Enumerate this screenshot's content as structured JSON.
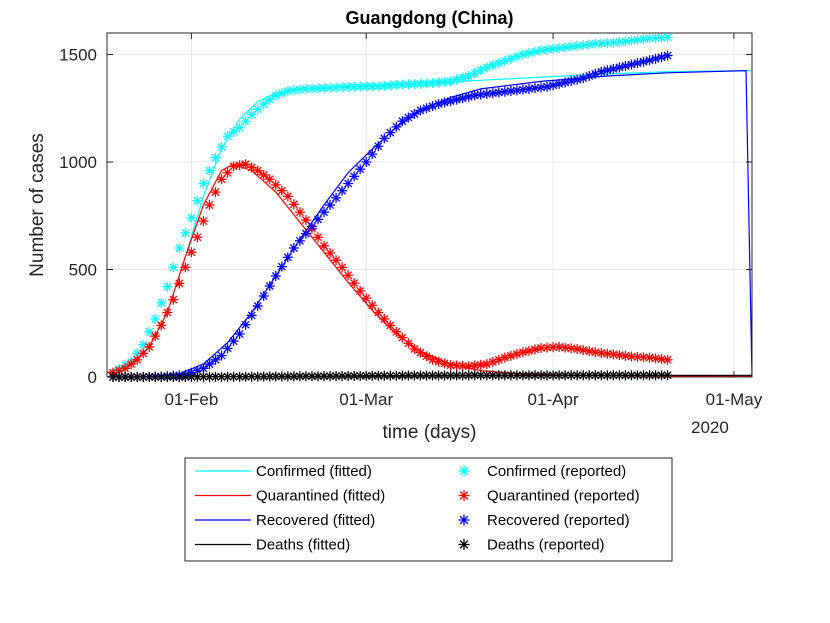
{
  "chart_data": {
    "type": "line",
    "title": "Guangdong (China)",
    "xlabel": "time (days)",
    "ylabel": "Number of cases",
    "x_axis": {
      "type": "date",
      "range": [
        "2020-01-18",
        "2020-05-04"
      ],
      "ticks": [
        {
          "date": "2020-02-01",
          "label": "01-Feb"
        },
        {
          "date": "2020-03-01",
          "label": "01-Mar"
        },
        {
          "date": "2020-04-01",
          "label": "01-Apr"
        },
        {
          "date": "2020-05-01",
          "label": "01-May"
        }
      ],
      "year_label": "2020"
    },
    "y_axis": {
      "range": [
        0,
        1600
      ],
      "ticks": [
        0,
        500,
        1000,
        1500
      ]
    },
    "grid": true,
    "legend": {
      "placement": "below",
      "columns": 2
    },
    "series": [
      {
        "name": "Confirmed (fitted)",
        "kind": "fitted",
        "color": "#00ffff",
        "x": [
          "2020-01-18",
          "2020-01-22",
          "2020-01-25",
          "2020-01-28",
          "2020-01-31",
          "2020-02-03",
          "2020-02-06",
          "2020-02-09",
          "2020-02-12",
          "2020-02-15",
          "2020-02-18",
          "2020-02-22",
          "2020-02-26",
          "2020-03-02",
          "2020-03-10",
          "2020-03-20",
          "2020-03-30",
          "2020-04-10",
          "2020-04-20",
          "2020-05-04"
        ],
        "y": [
          20,
          60,
          140,
          300,
          560,
          840,
          1060,
          1200,
          1280,
          1320,
          1335,
          1345,
          1350,
          1355,
          1365,
          1380,
          1395,
          1410,
          1420,
          1425
        ]
      },
      {
        "name": "Quarantined (fitted)",
        "kind": "fitted",
        "color": "#ff0000",
        "x": [
          "2020-01-18",
          "2020-01-22",
          "2020-01-25",
          "2020-01-28",
          "2020-01-31",
          "2020-02-03",
          "2020-02-06",
          "2020-02-08",
          "2020-02-11",
          "2020-02-15",
          "2020-02-19",
          "2020-02-23",
          "2020-02-27",
          "2020-03-02",
          "2020-03-06",
          "2020-03-10",
          "2020-03-15",
          "2020-03-20",
          "2020-03-27",
          "2020-04-05",
          "2020-04-20",
          "2020-05-04"
        ],
        "y": [
          20,
          60,
          140,
          300,
          560,
          800,
          960,
          990,
          960,
          860,
          720,
          580,
          440,
          310,
          200,
          120,
          60,
          30,
          15,
          8,
          5,
          3
        ]
      },
      {
        "name": "Recovered (fitted)",
        "kind": "fitted",
        "color": "#0000ff",
        "x": [
          "2020-01-18",
          "2020-01-25",
          "2020-01-30",
          "2020-02-03",
          "2020-02-07",
          "2020-02-11",
          "2020-02-15",
          "2020-02-19",
          "2020-02-23",
          "2020-02-27",
          "2020-03-02",
          "2020-03-06",
          "2020-03-10",
          "2020-03-15",
          "2020-03-20",
          "2020-03-30",
          "2020-04-10",
          "2020-04-20",
          "2020-05-03",
          "2020-05-04"
        ],
        "y": [
          0,
          2,
          15,
          60,
          160,
          300,
          470,
          640,
          800,
          950,
          1060,
          1160,
          1240,
          1300,
          1340,
          1375,
          1400,
          1415,
          1425,
          0
        ]
      },
      {
        "name": "Deaths (fitted)",
        "kind": "fitted",
        "color": "#000000",
        "x": [
          "2020-01-18",
          "2020-02-15",
          "2020-03-10",
          "2020-04-10",
          "2020-05-04"
        ],
        "y": [
          0,
          2,
          6,
          8,
          8
        ]
      },
      {
        "name": "Confirmed (reported)",
        "kind": "reported",
        "color": "#00ffff",
        "x": [
          "2020-01-19",
          "2020-01-22",
          "2020-01-24",
          "2020-01-26",
          "2020-01-28",
          "2020-01-30",
          "2020-02-01",
          "2020-02-03",
          "2020-02-05",
          "2020-02-07",
          "2020-02-09",
          "2020-02-11",
          "2020-02-13",
          "2020-02-15",
          "2020-02-17",
          "2020-02-20",
          "2020-02-24",
          "2020-02-28",
          "2020-03-03",
          "2020-03-07",
          "2020-03-11",
          "2020-03-15",
          "2020-03-18",
          "2020-03-21",
          "2020-03-24",
          "2020-03-27",
          "2020-03-30",
          "2020-04-02",
          "2020-04-05",
          "2020-04-08",
          "2020-04-11",
          "2020-04-14",
          "2020-04-17",
          "2020-04-20"
        ],
        "y": [
          20,
          70,
          150,
          270,
          420,
          600,
          740,
          900,
          1020,
          1120,
          1160,
          1220,
          1270,
          1310,
          1330,
          1340,
          1345,
          1350,
          1352,
          1360,
          1365,
          1375,
          1400,
          1440,
          1470,
          1500,
          1520,
          1530,
          1540,
          1550,
          1555,
          1565,
          1575,
          1580
        ]
      },
      {
        "name": "Quarantined (reported)",
        "kind": "reported",
        "color": "#ff0000",
        "x": [
          "2020-01-19",
          "2020-01-21",
          "2020-01-23",
          "2020-01-25",
          "2020-01-27",
          "2020-01-29",
          "2020-01-31",
          "2020-02-02",
          "2020-02-04",
          "2020-02-06",
          "2020-02-08",
          "2020-02-10",
          "2020-02-12",
          "2020-02-14",
          "2020-02-17",
          "2020-02-20",
          "2020-02-23",
          "2020-02-26",
          "2020-02-29",
          "2020-03-03",
          "2020-03-06",
          "2020-03-09",
          "2020-03-12",
          "2020-03-15",
          "2020-03-18",
          "2020-03-21",
          "2020-03-24",
          "2020-03-27",
          "2020-03-30",
          "2020-04-02",
          "2020-04-05",
          "2020-04-08",
          "2020-04-11",
          "2020-04-14",
          "2020-04-17",
          "2020-04-20"
        ],
        "y": [
          20,
          40,
          80,
          140,
          240,
          360,
          510,
          650,
          800,
          920,
          980,
          990,
          960,
          920,
          840,
          730,
          610,
          510,
          400,
          300,
          210,
          130,
          80,
          55,
          50,
          60,
          90,
          115,
          135,
          140,
          130,
          115,
          105,
          95,
          90,
          80
        ]
      },
      {
        "name": "Recovered (reported)",
        "kind": "reported",
        "color": "#0000ff",
        "x": [
          "2020-01-19",
          "2020-01-23",
          "2020-01-27",
          "2020-01-31",
          "2020-02-03",
          "2020-02-06",
          "2020-02-09",
          "2020-02-12",
          "2020-02-15",
          "2020-02-18",
          "2020-02-21",
          "2020-02-24",
          "2020-02-27",
          "2020-03-01",
          "2020-03-04",
          "2020-03-07",
          "2020-03-10",
          "2020-03-13",
          "2020-03-16",
          "2020-03-19",
          "2020-03-22",
          "2020-03-25",
          "2020-03-28",
          "2020-03-31",
          "2020-04-03",
          "2020-04-06",
          "2020-04-09",
          "2020-04-12",
          "2020-04-15",
          "2020-04-18",
          "2020-04-20"
        ],
        "y": [
          0,
          0,
          2,
          10,
          40,
          100,
          200,
          330,
          470,
          600,
          700,
          800,
          900,
          1000,
          1110,
          1190,
          1240,
          1270,
          1290,
          1310,
          1320,
          1330,
          1340,
          1350,
          1370,
          1390,
          1420,
          1440,
          1460,
          1480,
          1495
        ]
      },
      {
        "name": "Deaths (reported)",
        "kind": "reported",
        "color": "#000000",
        "x": [
          "2020-01-19",
          "2020-01-24",
          "2020-01-29",
          "2020-02-03",
          "2020-02-08",
          "2020-02-13",
          "2020-02-18",
          "2020-02-23",
          "2020-02-28",
          "2020-03-04",
          "2020-03-09",
          "2020-03-14",
          "2020-03-19",
          "2020-03-24",
          "2020-03-29",
          "2020-04-03",
          "2020-04-08",
          "2020-04-13",
          "2020-04-18",
          "2020-04-20"
        ],
        "y": [
          0,
          0,
          0,
          1,
          1,
          2,
          3,
          4,
          5,
          6,
          7,
          7,
          8,
          8,
          8,
          8,
          8,
          8,
          8,
          8
        ]
      }
    ]
  }
}
